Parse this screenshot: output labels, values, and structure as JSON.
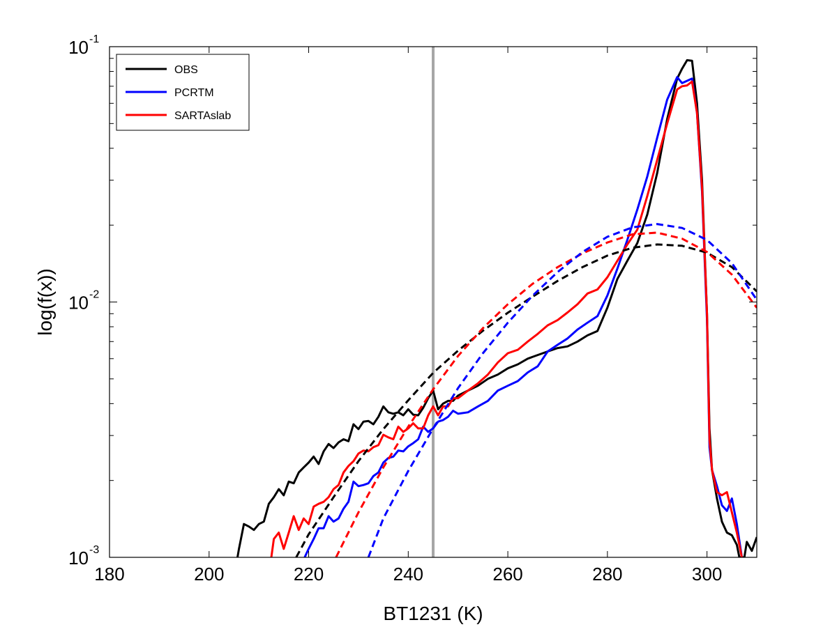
{
  "chart_data": {
    "type": "line",
    "xlabel": "BT1231 (K)",
    "ylabel": "log(f(x))",
    "xlim": [
      180,
      310
    ],
    "ylim": [
      0.001,
      0.1
    ],
    "y_scale": "log",
    "x_ticks": [
      "180",
      "200",
      "220",
      "240",
      "260",
      "280",
      "300"
    ],
    "y_ticks": [
      {
        "value": 0.1,
        "base": "10",
        "exp": "-1"
      },
      {
        "value": 0.01,
        "base": "10",
        "exp": "-2"
      },
      {
        "value": 0.001,
        "base": "10",
        "exp": "-3"
      }
    ],
    "grid": false,
    "legend_position": "top-left",
    "vertical_line": {
      "x": 245,
      "color": "#a6a6a6"
    },
    "series": [
      {
        "name": "OBS",
        "color": "#000000",
        "style": "solid",
        "points": [
          [
            205.7,
            0.001
          ],
          [
            206,
            0.00108
          ],
          [
            207,
            0.00135
          ],
          [
            208,
            0.00132
          ],
          [
            209,
            0.00128
          ],
          [
            210,
            0.00135
          ],
          [
            211,
            0.00138
          ],
          [
            212,
            0.00162
          ],
          [
            213,
            0.00172
          ],
          [
            214,
            0.00185
          ],
          [
            215,
            0.00175
          ],
          [
            216,
            0.00198
          ],
          [
            217,
            0.00195
          ],
          [
            218,
            0.00215
          ],
          [
            219,
            0.00225
          ],
          [
            220,
            0.00235
          ],
          [
            221,
            0.00248
          ],
          [
            222,
            0.00232
          ],
          [
            223,
            0.0026
          ],
          [
            224,
            0.00278
          ],
          [
            225,
            0.00268
          ],
          [
            226,
            0.00282
          ],
          [
            227,
            0.0029
          ],
          [
            228,
            0.00285
          ],
          [
            229,
            0.00332
          ],
          [
            230,
            0.00318
          ],
          [
            231,
            0.0034
          ],
          [
            232,
            0.00342
          ],
          [
            233,
            0.00332
          ],
          [
            234,
            0.00355
          ],
          [
            235,
            0.0039
          ],
          [
            236,
            0.0037
          ],
          [
            237,
            0.00365
          ],
          [
            238,
            0.0037
          ],
          [
            239,
            0.0036
          ],
          [
            240,
            0.0038
          ],
          [
            241,
            0.00362
          ],
          [
            242,
            0.0036
          ],
          [
            243,
            0.00385
          ],
          [
            244,
            0.0042
          ],
          [
            245,
            0.0045
          ],
          [
            246,
            0.0038
          ],
          [
            247,
            0.004
          ],
          [
            248,
            0.0041
          ],
          [
            249,
            0.0041
          ],
          [
            250,
            0.0043
          ],
          [
            252,
            0.0045
          ],
          [
            254,
            0.0047
          ],
          [
            256,
            0.005
          ],
          [
            258,
            0.0052
          ],
          [
            260,
            0.0055
          ],
          [
            262,
            0.0057
          ],
          [
            264,
            0.006
          ],
          [
            266,
            0.0062
          ],
          [
            268,
            0.0064
          ],
          [
            270,
            0.0066
          ],
          [
            272,
            0.0067
          ],
          [
            274,
            0.007
          ],
          [
            276,
            0.0074
          ],
          [
            278,
            0.0077
          ],
          [
            280,
            0.0095
          ],
          [
            282,
            0.0123
          ],
          [
            284,
            0.0145
          ],
          [
            286,
            0.017
          ],
          [
            288,
            0.022
          ],
          [
            290,
            0.032
          ],
          [
            292,
            0.052
          ],
          [
            294,
            0.075
          ],
          [
            295,
            0.082
          ],
          [
            296,
            0.0885
          ],
          [
            297,
            0.088
          ],
          [
            298,
            0.06
          ],
          [
            299,
            0.03
          ],
          [
            300,
            0.009
          ],
          [
            300.5,
            0.0032
          ],
          [
            301,
            0.0022
          ],
          [
            302,
            0.0017
          ],
          [
            303,
            0.00138
          ],
          [
            304,
            0.00125
          ],
          [
            305,
            0.00122
          ],
          [
            306,
            0.00112
          ],
          [
            306.5,
            0.001
          ],
          [
            307.5,
            0.001
          ],
          [
            308,
            0.00115
          ],
          [
            309,
            0.00106
          ],
          [
            310,
            0.0012
          ]
        ]
      },
      {
        "name": "PCRTM",
        "color": "#0000ff",
        "style": "solid",
        "points": [
          [
            219.2,
            0.001
          ],
          [
            220,
            0.00108
          ],
          [
            221,
            0.00118
          ],
          [
            222,
            0.0013
          ],
          [
            223,
            0.0013
          ],
          [
            224,
            0.00145
          ],
          [
            225,
            0.00138
          ],
          [
            226,
            0.00142
          ],
          [
            227,
            0.00155
          ],
          [
            228,
            0.00165
          ],
          [
            229,
            0.00198
          ],
          [
            230,
            0.0019
          ],
          [
            231,
            0.00192
          ],
          [
            232,
            0.00195
          ],
          [
            233,
            0.00208
          ],
          [
            234,
            0.00215
          ],
          [
            235,
            0.00235
          ],
          [
            236,
            0.00245
          ],
          [
            237,
            0.00248
          ],
          [
            238,
            0.00262
          ],
          [
            239,
            0.0026
          ],
          [
            240,
            0.00272
          ],
          [
            241,
            0.0028
          ],
          [
            242,
            0.0029
          ],
          [
            243,
            0.00325
          ],
          [
            244,
            0.0031
          ],
          [
            245,
            0.0032
          ],
          [
            246,
            0.0034
          ],
          [
            247,
            0.00345
          ],
          [
            248,
            0.00355
          ],
          [
            249,
            0.00375
          ],
          [
            250,
            0.00365
          ],
          [
            252,
            0.0037
          ],
          [
            254,
            0.0039
          ],
          [
            256,
            0.0041
          ],
          [
            258,
            0.0045
          ],
          [
            260,
            0.0047
          ],
          [
            262,
            0.0049
          ],
          [
            264,
            0.0053
          ],
          [
            266,
            0.0056
          ],
          [
            268,
            0.0064
          ],
          [
            270,
            0.0068
          ],
          [
            272,
            0.0072
          ],
          [
            274,
            0.0078
          ],
          [
            276,
            0.0083
          ],
          [
            278,
            0.0088
          ],
          [
            280,
            0.0106
          ],
          [
            282,
            0.0135
          ],
          [
            284,
            0.0175
          ],
          [
            286,
            0.023
          ],
          [
            288,
            0.031
          ],
          [
            290,
            0.044
          ],
          [
            292,
            0.062
          ],
          [
            294,
            0.076
          ],
          [
            295,
            0.072
          ],
          [
            296,
            0.0735
          ],
          [
            297,
            0.075
          ],
          [
            298,
            0.055
          ],
          [
            299,
            0.027
          ],
          [
            300,
            0.0085
          ],
          [
            300.5,
            0.0027
          ],
          [
            301,
            0.0022
          ],
          [
            302,
            0.0019
          ],
          [
            303,
            0.0016
          ],
          [
            304,
            0.00152
          ],
          [
            305,
            0.0017
          ],
          [
            306,
            0.00135
          ],
          [
            307,
            0.001
          ]
        ]
      },
      {
        "name": "SARTAslab",
        "color": "#ff0000",
        "style": "solid",
        "points": [
          [
            212.5,
            0.001
          ],
          [
            213,
            0.00118
          ],
          [
            214,
            0.00125
          ],
          [
            215,
            0.00108
          ],
          [
            216,
            0.00125
          ],
          [
            217,
            0.00145
          ],
          [
            218,
            0.00128
          ],
          [
            219,
            0.00142
          ],
          [
            220,
            0.00135
          ],
          [
            221,
            0.00158
          ],
          [
            222,
            0.00162
          ],
          [
            223,
            0.00165
          ],
          [
            224,
            0.00172
          ],
          [
            225,
            0.00185
          ],
          [
            226,
            0.00192
          ],
          [
            227,
            0.00215
          ],
          [
            228,
            0.00228
          ],
          [
            229,
            0.00238
          ],
          [
            230,
            0.00255
          ],
          [
            231,
            0.00262
          ],
          [
            232,
            0.0026
          ],
          [
            233,
            0.0027
          ],
          [
            234,
            0.00275
          ],
          [
            235,
            0.00302
          ],
          [
            236,
            0.00295
          ],
          [
            237,
            0.0029
          ],
          [
            238,
            0.00325
          ],
          [
            239,
            0.0031
          ],
          [
            240,
            0.0032
          ],
          [
            241,
            0.00335
          ],
          [
            242,
            0.0032
          ],
          [
            243,
            0.0032
          ],
          [
            244,
            0.0036
          ],
          [
            245,
            0.0039
          ],
          [
            246,
            0.0036
          ],
          [
            247,
            0.0039
          ],
          [
            248,
            0.0039
          ],
          [
            249,
            0.0042
          ],
          [
            250,
            0.0042
          ],
          [
            252,
            0.0045
          ],
          [
            254,
            0.0048
          ],
          [
            256,
            0.0052
          ],
          [
            258,
            0.0058
          ],
          [
            260,
            0.0063
          ],
          [
            262,
            0.0065
          ],
          [
            264,
            0.007
          ],
          [
            266,
            0.0075
          ],
          [
            268,
            0.0081
          ],
          [
            270,
            0.0085
          ],
          [
            272,
            0.0091
          ],
          [
            274,
            0.0098
          ],
          [
            276,
            0.0108
          ],
          [
            278,
            0.0112
          ],
          [
            280,
            0.0125
          ],
          [
            282,
            0.0145
          ],
          [
            284,
            0.0168
          ],
          [
            286,
            0.0192
          ],
          [
            288,
            0.026
          ],
          [
            290,
            0.036
          ],
          [
            292,
            0.05
          ],
          [
            294,
            0.068
          ],
          [
            295,
            0.07
          ],
          [
            296,
            0.0705
          ],
          [
            297,
            0.073
          ],
          [
            298,
            0.055
          ],
          [
            299,
            0.028
          ],
          [
            300,
            0.009
          ],
          [
            300.5,
            0.0029
          ],
          [
            301,
            0.0022
          ],
          [
            302,
            0.0018
          ],
          [
            303,
            0.00175
          ],
          [
            304,
            0.0018
          ],
          [
            305,
            0.0015
          ],
          [
            306,
            0.00125
          ],
          [
            307,
            0.001
          ]
        ]
      },
      {
        "name": "",
        "color": "#000000",
        "style": "dashed",
        "points": [
          [
            217.5,
            0.001
          ],
          [
            220,
            0.00123
          ],
          [
            225,
            0.00172
          ],
          [
            230,
            0.00238
          ],
          [
            235,
            0.00318
          ],
          [
            240,
            0.00412
          ],
          [
            245,
            0.00528
          ],
          [
            250,
            0.00645
          ],
          [
            255,
            0.00772
          ],
          [
            260,
            0.00908
          ],
          [
            265,
            0.0105
          ],
          [
            270,
            0.0121
          ],
          [
            275,
            0.0137
          ],
          [
            280,
            0.0152
          ],
          [
            285,
            0.0163
          ],
          [
            290,
            0.0168
          ],
          [
            295,
            0.0166
          ],
          [
            300,
            0.0156
          ],
          [
            305,
            0.0137
          ],
          [
            310,
            0.011
          ]
        ]
      },
      {
        "name": "",
        "color": "#ff0000",
        "style": "dashed",
        "points": [
          [
            225.5,
            0.001
          ],
          [
            230,
            0.0015
          ],
          [
            235,
            0.00225
          ],
          [
            240,
            0.00325
          ],
          [
            245,
            0.00455
          ],
          [
            250,
            0.00615
          ],
          [
            255,
            0.0079
          ],
          [
            260,
            0.0098
          ],
          [
            265,
            0.0118
          ],
          [
            270,
            0.0137
          ],
          [
            275,
            0.0155
          ],
          [
            280,
            0.0171
          ],
          [
            285,
            0.0184
          ],
          [
            290,
            0.0187
          ],
          [
            295,
            0.0177
          ],
          [
            300,
            0.0157
          ],
          [
            305,
            0.0128
          ],
          [
            310,
            0.0095
          ]
        ]
      },
      {
        "name": "",
        "color": "#0000ff",
        "style": "dashed",
        "points": [
          [
            232,
            0.001
          ],
          [
            235,
            0.00142
          ],
          [
            240,
            0.00218
          ],
          [
            245,
            0.0032
          ],
          [
            250,
            0.0046
          ],
          [
            255,
            0.0063
          ],
          [
            260,
            0.0083
          ],
          [
            265,
            0.0106
          ],
          [
            270,
            0.0131
          ],
          [
            275,
            0.0157
          ],
          [
            280,
            0.018
          ],
          [
            285,
            0.0196
          ],
          [
            290,
            0.0202
          ],
          [
            295,
            0.0195
          ],
          [
            300,
            0.0175
          ],
          [
            305,
            0.0142
          ],
          [
            310,
            0.0102
          ]
        ]
      }
    ]
  }
}
